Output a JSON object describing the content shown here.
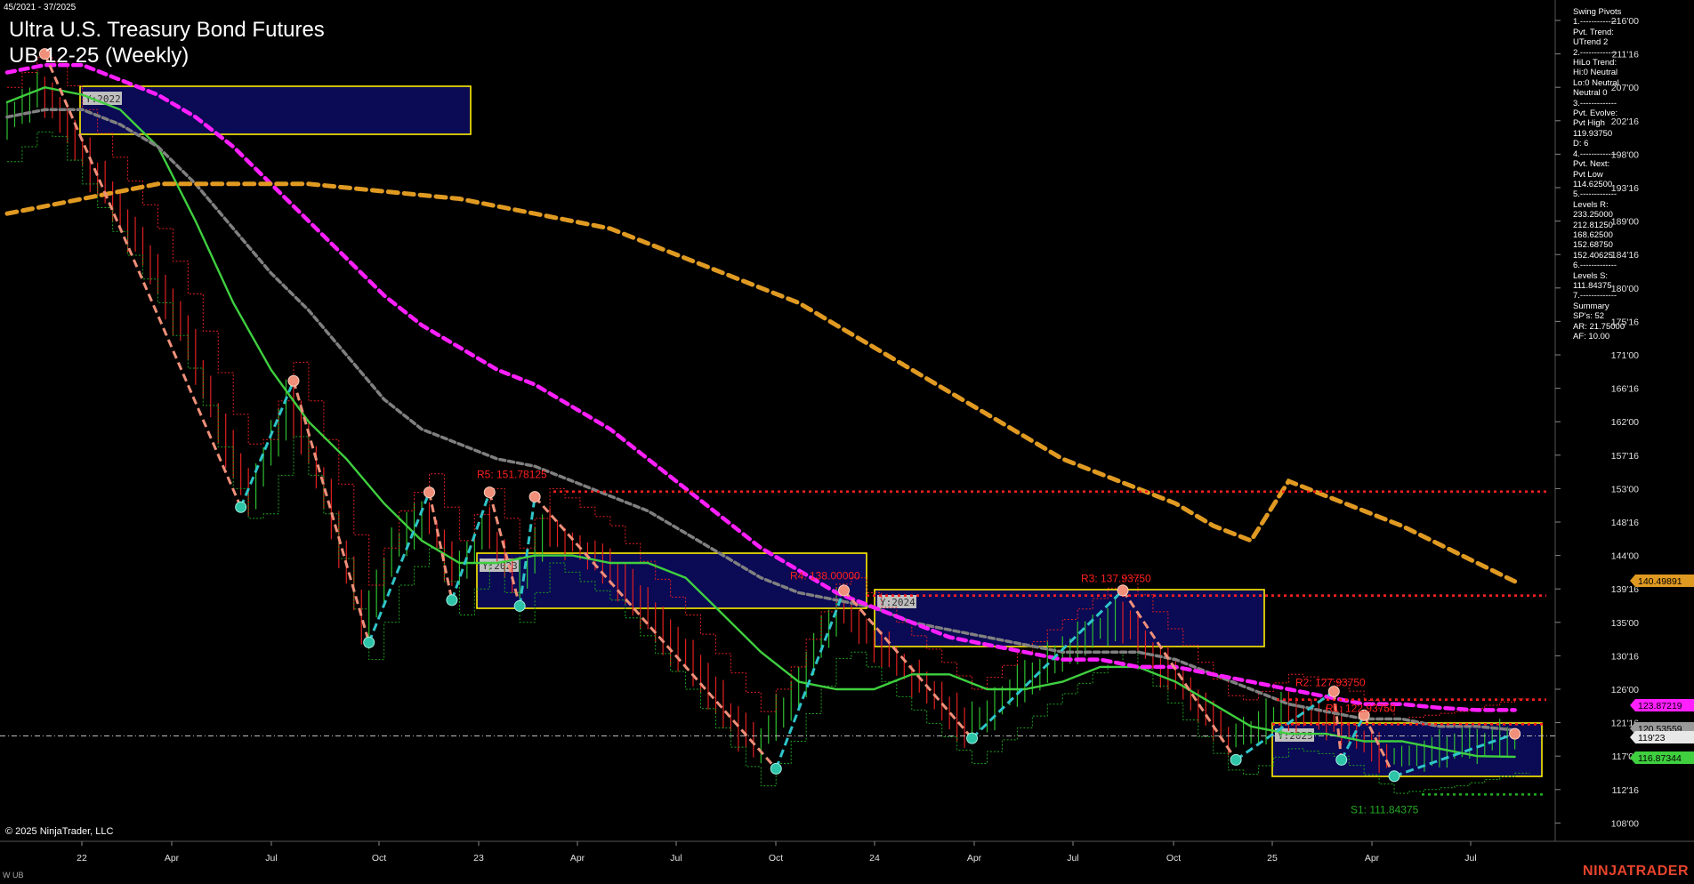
{
  "header": {
    "date_range": "45/2021 - 37/2025",
    "title_line1": "Ultra U.S. Treasury Bond Futures",
    "title_line2": "UB 12-25 (Weekly)"
  },
  "footer": {
    "copyright": "© 2025 NinjaTrader, LLC",
    "instrument_short": "W UB",
    "brand": "NINJATRADER"
  },
  "info_panel": [
    "Swing Pivots",
    "1.-------------",
    "Pvt. Trend:",
    "UTrend 2",
    "2.-------------",
    "HiLo Trend:",
    "Hi:0 Neutral",
    "Lo:0 Neutral",
    "Neutral 0",
    "3.-------------",
    "Pvt. Evolve:",
    "Pvt High",
    "119.93750",
    "D: 6",
    "4.-------------",
    "Pvt. Next:",
    "Pvt Low",
    "114.62500",
    "5.-------------",
    "Levels R:",
    "233.25000",
    "212.81250",
    "168.62500",
    "152.68750",
    "152.40625",
    "6.-------------",
    "Levels S:",
    "111.84375",
    "7.-------------",
    "Summary",
    "SP's: 52",
    "AR: 21.75000",
    "AF: 10.00"
  ],
  "colors": {
    "background": "#000000",
    "fast_ma": "#3fcf3f",
    "slow_ma_gray": "#808080",
    "magenta_ma": "#ff1fff",
    "orange_ma": "#e09a22",
    "resistance": "#ff2020",
    "support": "#22a722",
    "swing_up": "#2ec4c8",
    "swing_down": "#f0907a",
    "year_box_fill": "#0a0a55",
    "year_box_border": "#ffee00"
  },
  "chart_data": {
    "type": "line",
    "instrument": "UB 12-25",
    "timeframe": "Weekly",
    "y_axis_ticks": [
      "216'00",
      "211'16",
      "207'00",
      "202'16",
      "198'00",
      "193'16",
      "189'00",
      "184'16",
      "180'00",
      "175'16",
      "171'00",
      "166'16",
      "162'00",
      "157'16",
      "153'00",
      "148'16",
      "144'00",
      "139'16",
      "135'00",
      "130'16",
      "126'00",
      "121'16",
      "117'00",
      "112'16",
      "108'00"
    ],
    "x_axis_ticks": [
      "22",
      "Apr",
      "Jul",
      "Oct",
      "23",
      "Apr",
      "Jul",
      "Oct",
      "24",
      "Apr",
      "Jul",
      "Oct",
      "25",
      "Apr",
      "Jul"
    ],
    "price_labels": [
      {
        "text": "140.49891",
        "value": 140.49891,
        "color": "#e09a22",
        "text_color": "#000"
      },
      {
        "text": "123.87219",
        "value": 123.87219,
        "color": "#ff1fff",
        "text_color": "#000"
      },
      {
        "text": "120.53559",
        "value": 120.53559,
        "color": "#9a9a9a",
        "text_color": "#000"
      },
      {
        "text": "119'23",
        "value": 119.72,
        "color": "#e8e8e8",
        "text_color": "#000"
      },
      {
        "text": "116.87344",
        "value": 116.87344,
        "color": "#3fcf3f",
        "text_color": "#000"
      }
    ],
    "level_labels": [
      {
        "text": "R5: 151.78125",
        "value": 152.6,
        "color": "#ff2020"
      },
      {
        "text": "R4: 138.00000",
        "value": 138.6,
        "color": "#ff2020"
      },
      {
        "text": "R3: 137.93750",
        "value": 138.6,
        "color": "#ff2020"
      },
      {
        "text": "R2: 127.93750",
        "value": 124.6,
        "color": "#ff2020"
      },
      {
        "text": "R1: 122.93750",
        "value": 121.3,
        "color": "#ff2020"
      },
      {
        "text": "S1: 111.84375",
        "value": 111.84,
        "color": "#22a722"
      }
    ],
    "year_labels": [
      "Y:2022",
      "Y:2023",
      "Y:2024",
      "Y:2025"
    ],
    "current_price": 119.72,
    "ylim": [
      106,
      218
    ],
    "x_range": [
      0,
      205
    ],
    "swing_pivots": [
      {
        "x": 5,
        "y": 211.5,
        "type": "high"
      },
      {
        "x": 31,
        "y": 150.5,
        "type": "low"
      },
      {
        "x": 38,
        "y": 167.5,
        "type": "high"
      },
      {
        "x": 48,
        "y": 132.3,
        "type": "low"
      },
      {
        "x": 56,
        "y": 152.5,
        "type": "high"
      },
      {
        "x": 59,
        "y": 138.0,
        "type": "low"
      },
      {
        "x": 64,
        "y": 152.5,
        "type": "high"
      },
      {
        "x": 68,
        "y": 137.2,
        "type": "low"
      },
      {
        "x": 70,
        "y": 151.9,
        "type": "high"
      },
      {
        "x": 102,
        "y": 115.3,
        "type": "low"
      },
      {
        "x": 111,
        "y": 139.3,
        "type": "high"
      },
      {
        "x": 128,
        "y": 119.4,
        "type": "low"
      },
      {
        "x": 148,
        "y": 139.3,
        "type": "high"
      },
      {
        "x": 163,
        "y": 116.5,
        "type": "low"
      },
      {
        "x": 176,
        "y": 125.7,
        "type": "high"
      },
      {
        "x": 177,
        "y": 116.5,
        "type": "low"
      },
      {
        "x": 180,
        "y": 122.5,
        "type": "high"
      },
      {
        "x": 184,
        "y": 114.3,
        "type": "low"
      },
      {
        "x": 200,
        "y": 120.0,
        "type": "high"
      }
    ],
    "series": [
      {
        "name": "fast",
        "style": "solid",
        "color": "#3fcf3f",
        "points": [
          [
            0,
            205
          ],
          [
            5,
            207
          ],
          [
            10,
            206
          ],
          [
            15,
            204
          ],
          [
            20,
            199
          ],
          [
            25,
            189
          ],
          [
            30,
            178
          ],
          [
            35,
            169
          ],
          [
            40,
            162
          ],
          [
            45,
            157
          ],
          [
            50,
            151
          ],
          [
            55,
            146
          ],
          [
            60,
            143
          ],
          [
            65,
            143
          ],
          [
            70,
            144
          ],
          [
            75,
            144
          ],
          [
            80,
            143
          ],
          [
            85,
            143
          ],
          [
            90,
            141
          ],
          [
            95,
            136
          ],
          [
            100,
            131
          ],
          [
            105,
            127
          ],
          [
            110,
            126
          ],
          [
            115,
            126
          ],
          [
            120,
            128
          ],
          [
            125,
            128
          ],
          [
            130,
            126
          ],
          [
            135,
            126
          ],
          [
            140,
            127
          ],
          [
            145,
            129
          ],
          [
            150,
            129
          ],
          [
            155,
            127
          ],
          [
            160,
            124
          ],
          [
            165,
            121
          ],
          [
            170,
            120
          ],
          [
            175,
            120
          ],
          [
            180,
            119
          ],
          [
            185,
            119
          ],
          [
            190,
            118
          ],
          [
            195,
            117
          ],
          [
            200,
            116.9
          ]
        ]
      },
      {
        "name": "mid",
        "style": "dashed",
        "color": "#808080",
        "points": [
          [
            0,
            203
          ],
          [
            5,
            204
          ],
          [
            10,
            204
          ],
          [
            15,
            202
          ],
          [
            20,
            199
          ],
          [
            25,
            194
          ],
          [
            30,
            188
          ],
          [
            35,
            182
          ],
          [
            40,
            177
          ],
          [
            45,
            171
          ],
          [
            50,
            165
          ],
          [
            55,
            161
          ],
          [
            60,
            159
          ],
          [
            65,
            157
          ],
          [
            70,
            156
          ],
          [
            75,
            154
          ],
          [
            80,
            152
          ],
          [
            85,
            150
          ],
          [
            90,
            147
          ],
          [
            95,
            144
          ],
          [
            100,
            141
          ],
          [
            105,
            139
          ],
          [
            110,
            138
          ],
          [
            115,
            137
          ],
          [
            120,
            135
          ],
          [
            125,
            134
          ],
          [
            130,
            133
          ],
          [
            135,
            132
          ],
          [
            140,
            131
          ],
          [
            145,
            131
          ],
          [
            150,
            131
          ],
          [
            155,
            130
          ],
          [
            160,
            128
          ],
          [
            165,
            126
          ],
          [
            170,
            124
          ],
          [
            175,
            123
          ],
          [
            180,
            122
          ],
          [
            185,
            122
          ],
          [
            190,
            121
          ],
          [
            195,
            121
          ],
          [
            200,
            120.5
          ]
        ]
      },
      {
        "name": "slow",
        "style": "dashed",
        "color": "#ff1fff",
        "points": [
          [
            0,
            209
          ],
          [
            5,
            210
          ],
          [
            10,
            210
          ],
          [
            15,
            208
          ],
          [
            20,
            206
          ],
          [
            25,
            203
          ],
          [
            30,
            199
          ],
          [
            35,
            194
          ],
          [
            40,
            189
          ],
          [
            45,
            184
          ],
          [
            50,
            179
          ],
          [
            55,
            175
          ],
          [
            60,
            172
          ],
          [
            65,
            169
          ],
          [
            70,
            167
          ],
          [
            75,
            164
          ],
          [
            80,
            161
          ],
          [
            85,
            157
          ],
          [
            90,
            153
          ],
          [
            95,
            149
          ],
          [
            100,
            145
          ],
          [
            105,
            142
          ],
          [
            110,
            139
          ],
          [
            115,
            137
          ],
          [
            120,
            135
          ],
          [
            125,
            133
          ],
          [
            130,
            132
          ],
          [
            135,
            131
          ],
          [
            140,
            130
          ],
          [
            145,
            130
          ],
          [
            150,
            129
          ],
          [
            155,
            129
          ],
          [
            160,
            128
          ],
          [
            165,
            127
          ],
          [
            170,
            126
          ],
          [
            175,
            125
          ],
          [
            180,
            124
          ],
          [
            185,
            124
          ],
          [
            190,
            123.5
          ],
          [
            195,
            123.2
          ],
          [
            200,
            123.2
          ]
        ]
      },
      {
        "name": "longest",
        "style": "dashed",
        "color": "#e09a22",
        "points": [
          [
            0,
            190
          ],
          [
            5,
            191
          ],
          [
            10,
            192
          ],
          [
            15,
            193
          ],
          [
            20,
            194
          ],
          [
            25,
            194
          ],
          [
            30,
            194
          ],
          [
            35,
            194
          ],
          [
            40,
            194
          ],
          [
            45,
            193.5
          ],
          [
            50,
            193
          ],
          [
            55,
            192.5
          ],
          [
            60,
            192
          ],
          [
            65,
            191
          ],
          [
            70,
            190
          ],
          [
            75,
            189
          ],
          [
            80,
            188
          ],
          [
            85,
            186
          ],
          [
            90,
            184
          ],
          [
            95,
            182
          ],
          [
            100,
            180
          ],
          [
            105,
            178
          ],
          [
            110,
            175
          ],
          [
            115,
            172
          ],
          [
            120,
            169
          ],
          [
            125,
            166
          ],
          [
            130,
            163
          ],
          [
            135,
            160
          ],
          [
            140,
            157
          ],
          [
            145,
            155
          ],
          [
            150,
            153
          ],
          [
            155,
            151
          ],
          [
            160,
            148
          ],
          [
            165,
            146
          ],
          [
            170,
            154
          ],
          [
            175,
            152
          ],
          [
            180,
            150
          ],
          [
            185,
            148
          ],
          [
            190,
            145.5
          ],
          [
            195,
            143
          ],
          [
            200,
            140.5
          ]
        ]
      },
      {
        "name": "price",
        "style": "candles",
        "color": "#ff2020",
        "points": [
          [
            0,
            202
          ],
          [
            5,
            207
          ],
          [
            10,
            199
          ],
          [
            15,
            191
          ],
          [
            20,
            183
          ],
          [
            25,
            172
          ],
          [
            30,
            158
          ],
          [
            33,
            152
          ],
          [
            38,
            165
          ],
          [
            43,
            152
          ],
          [
            48,
            135
          ],
          [
            52,
            145
          ],
          [
            56,
            150
          ],
          [
            60,
            141
          ],
          [
            64,
            148
          ],
          [
            68,
            140
          ],
          [
            72,
            148
          ],
          [
            80,
            143
          ],
          [
            90,
            131
          ],
          [
            100,
            118
          ],
          [
            104,
            124
          ],
          [
            111,
            137
          ],
          [
            118,
            130
          ],
          [
            128,
            121
          ],
          [
            138,
            129
          ],
          [
            148,
            136
          ],
          [
            155,
            128
          ],
          [
            163,
            119
          ],
          [
            170,
            123
          ],
          [
            176,
            122
          ],
          [
            184,
            117
          ],
          [
            192,
            118
          ],
          [
            200,
            119.7
          ]
        ]
      }
    ]
  }
}
